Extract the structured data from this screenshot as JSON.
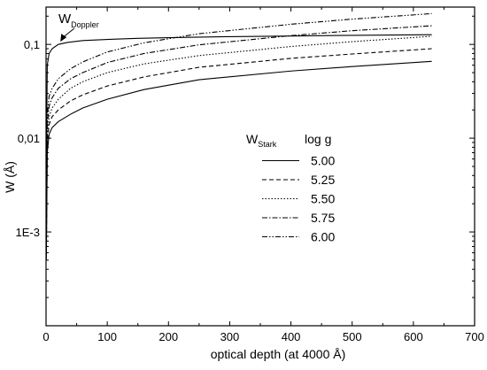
{
  "chart_data": {
    "type": "line",
    "title": "",
    "xlabel": "optical depth (at  4000 Å)",
    "ylabel": "W (Å)",
    "xlim": [
      0,
      700
    ],
    "ylim": [
      0.0001,
      0.25
    ],
    "yscale": "log",
    "grid": false,
    "x_ticks": [
      0,
      100,
      200,
      300,
      400,
      500,
      600,
      700
    ],
    "x_tick_labels": [
      "0",
      "100",
      "200",
      "300",
      "400",
      "500",
      "600",
      "700"
    ],
    "y_ticks": [
      0.001,
      0.01,
      0.1
    ],
    "y_tick_labels": [
      "1E-3",
      "0,01",
      "0,1"
    ],
    "legend": {
      "title_main": "W",
      "title_sub": "Stark",
      "title_extra": "log g",
      "placement": "center-right"
    },
    "annotation": {
      "main": "W",
      "sub": "Doppler",
      "arrow_target": {
        "x": 22,
        "y": 0.1
      }
    },
    "series": [
      {
        "name": "Doppler",
        "dash": "",
        "x": [
          0.5,
          2,
          5,
          10,
          20,
          35,
          60,
          100,
          150,
          200,
          300,
          400,
          500,
          630
        ],
        "y": [
          0.0045,
          0.06,
          0.08,
          0.09,
          0.1,
          0.105,
          0.11,
          0.113,
          0.116,
          0.118,
          0.121,
          0.123,
          0.125,
          0.127
        ]
      },
      {
        "name": "5.00",
        "dash": "",
        "x": [
          0.5,
          2,
          5,
          10,
          20,
          40,
          60,
          100,
          160,
          250,
          400,
          500,
          630
        ],
        "y": [
          0.0005,
          0.007,
          0.011,
          0.013,
          0.015,
          0.018,
          0.021,
          0.026,
          0.033,
          0.042,
          0.052,
          0.058,
          0.066
        ]
      },
      {
        "name": "5.25",
        "dash": "5,3",
        "x": [
          0.5,
          2,
          5,
          10,
          20,
          40,
          60,
          100,
          160,
          250,
          400,
          500,
          630
        ],
        "y": [
          0.0006,
          0.009,
          0.014,
          0.017,
          0.02,
          0.025,
          0.029,
          0.036,
          0.045,
          0.057,
          0.071,
          0.079,
          0.09
        ]
      },
      {
        "name": "5.50",
        "dash": "1.5,2",
        "x": [
          0.5,
          2,
          5,
          10,
          20,
          40,
          60,
          100,
          160,
          250,
          400,
          500,
          630
        ],
        "y": [
          0.0007,
          0.011,
          0.017,
          0.021,
          0.026,
          0.034,
          0.04,
          0.05,
          0.062,
          0.076,
          0.095,
          0.107,
          0.122
        ]
      },
      {
        "name": "5.75",
        "dash": "6,2,1.5,2",
        "x": [
          0.5,
          2,
          5,
          10,
          20,
          40,
          60,
          100,
          160,
          250,
          400,
          500,
          630
        ],
        "y": [
          0.0008,
          0.014,
          0.022,
          0.027,
          0.034,
          0.043,
          0.05,
          0.064,
          0.08,
          0.099,
          0.124,
          0.14,
          0.158
        ]
      },
      {
        "name": "6.00",
        "dash": "6,2,1.5,2,1.5,2",
        "x": [
          0.5,
          2,
          5,
          10,
          20,
          40,
          60,
          100,
          160,
          250,
          400,
          500,
          630
        ],
        "y": [
          0.001,
          0.018,
          0.028,
          0.034,
          0.043,
          0.055,
          0.065,
          0.083,
          0.104,
          0.13,
          0.164,
          0.186,
          0.213
        ]
      }
    ]
  }
}
